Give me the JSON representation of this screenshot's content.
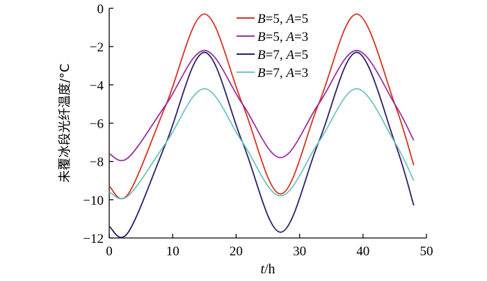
{
  "chart_data": {
    "type": "line",
    "xlabel": {
      "var": "t",
      "unit": "/h"
    },
    "ylabel": "未覆冰段光纤温度/°C",
    "xlim": [
      0,
      50
    ],
    "ylim": [
      -12,
      0
    ],
    "xticks": [
      0,
      10,
      20,
      30,
      40,
      50
    ],
    "yticks": [
      0,
      -2,
      -4,
      -6,
      -8,
      -10,
      -12
    ],
    "grid": false,
    "legend_position": "top-right",
    "series": [
      {
        "name": "B=5, A=5",
        "label_parts": {
          "b": "5",
          "a": "5"
        },
        "color": "#d7301f",
        "x": [
          0,
          3,
          9,
          15,
          21,
          27,
          33,
          39,
          45,
          48
        ],
        "y": [
          -9.3,
          -9.7,
          -5.0,
          -0.3,
          -5.0,
          -9.7,
          -5.0,
          -0.3,
          -5.0,
          -8.2
        ]
      },
      {
        "name": "B=5, A=3",
        "label_parts": {
          "b": "5",
          "a": "3"
        },
        "color": "#9b2fa0",
        "x": [
          0,
          3,
          9,
          15,
          21,
          27,
          33,
          39,
          45,
          48
        ],
        "y": [
          -7.6,
          -7.8,
          -5.0,
          -2.2,
          -5.0,
          -7.8,
          -5.0,
          -2.2,
          -5.0,
          -6.9
        ]
      },
      {
        "name": "B=7, A=5",
        "label_parts": {
          "b": "7",
          "a": "5"
        },
        "color": "#2b1c66",
        "x": [
          0,
          3,
          9,
          15,
          21,
          27,
          33,
          39,
          45,
          48
        ],
        "y": [
          -11.4,
          -11.7,
          -7.0,
          -2.3,
          -7.0,
          -11.7,
          -7.0,
          -2.3,
          -7.0,
          -10.3
        ]
      },
      {
        "name": "B=7, A=3",
        "label_parts": {
          "b": "7",
          "a": "3"
        },
        "color": "#6cc5bd",
        "x": [
          0,
          3,
          9,
          15,
          21,
          27,
          33,
          39,
          45,
          48
        ],
        "y": [
          -9.6,
          -9.8,
          -7.0,
          -4.2,
          -7.0,
          -9.8,
          -7.0,
          -4.2,
          -7.0,
          -9.0
        ]
      }
    ]
  }
}
